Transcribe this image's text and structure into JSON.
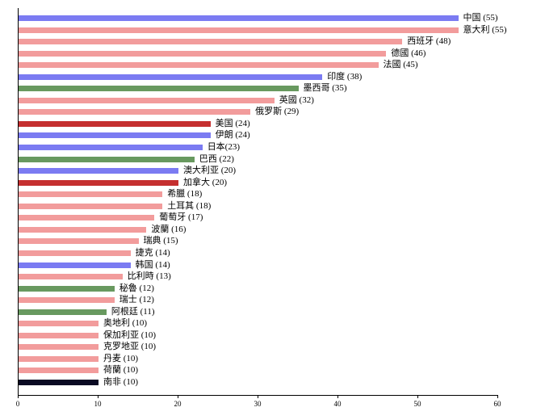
{
  "chart_data": {
    "type": "bar",
    "orientation": "horizontal",
    "title": "",
    "xlabel": "",
    "ylabel": "",
    "xlim": [
      0,
      60
    ],
    "x_ticks": [
      0,
      10,
      20,
      30,
      40,
      50,
      60
    ],
    "grid": false,
    "legend": null,
    "palette": {
      "blue": "#7b7bf2",
      "pink": "#f29c9c",
      "green": "#68995f",
      "dark_red": "#c52f2f",
      "black": "#0a0a23",
      "axis": "#000000",
      "text": "#000000"
    },
    "bars": [
      {
        "name": "中国",
        "value": 55,
        "label": "中国 (55)",
        "color": "blue"
      },
      {
        "name": "意大利",
        "value": 55,
        "label": "意大利 (55)",
        "color": "pink"
      },
      {
        "name": "西班牙",
        "value": 48,
        "label": "西班牙 (48)",
        "color": "pink"
      },
      {
        "name": "德國",
        "value": 46,
        "label": "德國 (46)",
        "color": "pink"
      },
      {
        "name": "法國",
        "value": 45,
        "label": "法國 (45)",
        "color": "pink"
      },
      {
        "name": "印度",
        "value": 38,
        "label": "印度 (38)",
        "color": "blue"
      },
      {
        "name": "墨西哥",
        "value": 35,
        "label": "墨西哥 (35)",
        "color": "green"
      },
      {
        "name": "英國",
        "value": 32,
        "label": "英國 (32)",
        "color": "pink"
      },
      {
        "name": "俄罗斯",
        "value": 29,
        "label": "俄罗斯 (29)",
        "color": "pink"
      },
      {
        "name": "美国",
        "value": 24,
        "label": "美国 (24)",
        "color": "dark_red"
      },
      {
        "name": "伊朗",
        "value": 24,
        "label": "伊朗 (24)",
        "color": "blue"
      },
      {
        "name": "日本",
        "value": 23,
        "label": "日本(23)",
        "color": "blue"
      },
      {
        "name": "巴西",
        "value": 22,
        "label": "巴西 (22)",
        "color": "green"
      },
      {
        "name": "澳大利亚",
        "value": 20,
        "label": "澳大利亚 (20)",
        "color": "blue"
      },
      {
        "name": "加拿大",
        "value": 20,
        "label": "加拿大 (20)",
        "color": "dark_red"
      },
      {
        "name": "希臘",
        "value": 18,
        "label": "希臘 (18)",
        "color": "pink"
      },
      {
        "name": "土耳其",
        "value": 18,
        "label": "土耳其 (18)",
        "color": "pink"
      },
      {
        "name": "葡萄牙",
        "value": 17,
        "label": "葡萄牙 (17)",
        "color": "pink"
      },
      {
        "name": "波蘭",
        "value": 16,
        "label": "波蘭 (16)",
        "color": "pink"
      },
      {
        "name": "瑞典",
        "value": 15,
        "label": "瑞典 (15)",
        "color": "pink"
      },
      {
        "name": "捷克",
        "value": 14,
        "label": "捷克 (14)",
        "color": "pink"
      },
      {
        "name": "韩国",
        "value": 14,
        "label": "韩国 (14)",
        "color": "blue"
      },
      {
        "name": "比利時",
        "value": 13,
        "label": "比利時 (13)",
        "color": "pink"
      },
      {
        "name": "秘魯",
        "value": 12,
        "label": "秘魯 (12)",
        "color": "green"
      },
      {
        "name": "瑞士",
        "value": 12,
        "label": "瑞士 (12)",
        "color": "pink"
      },
      {
        "name": "阿根廷",
        "value": 11,
        "label": "阿根廷 (11)",
        "color": "green"
      },
      {
        "name": "奥地利",
        "value": 10,
        "label": "奥地利 (10)",
        "color": "pink"
      },
      {
        "name": "保加利亚",
        "value": 10,
        "label": "保加利亚 (10)",
        "color": "pink"
      },
      {
        "name": "克罗地亚",
        "value": 10,
        "label": "克罗地亚 (10)",
        "color": "pink"
      },
      {
        "name": "丹麦",
        "value": 10,
        "label": "丹麦 (10)",
        "color": "pink"
      },
      {
        "name": "荷蘭",
        "value": 10,
        "label": "荷蘭 (10)",
        "color": "pink"
      },
      {
        "name": "南非",
        "value": 10,
        "label": "南非 (10)",
        "color": "black"
      }
    ]
  }
}
